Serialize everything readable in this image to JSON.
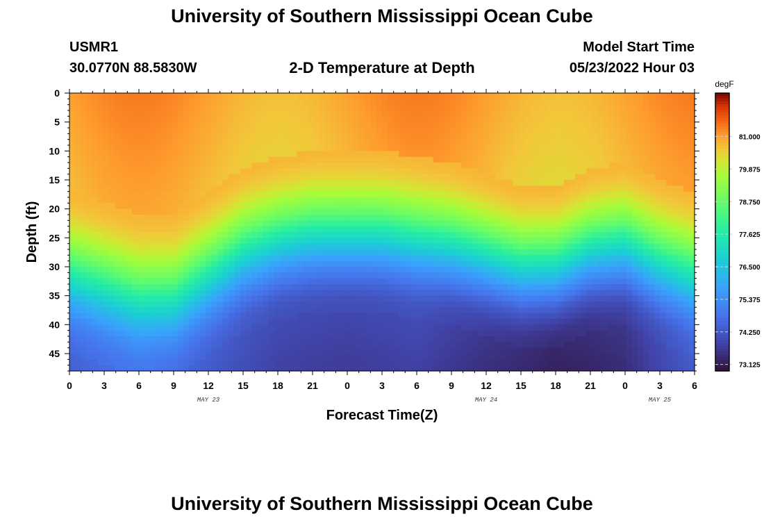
{
  "page": {
    "title": "University of Southern Mississippi Ocean Cube",
    "station_id": "USMR1",
    "coordinates": "30.0770N  88.5830W",
    "chart_title": "2-D Temperature at Depth",
    "model_label": "Model Start Time",
    "model_time": "05/23/2022 Hour 03",
    "footer_title": "University of Southern Mississippi Ocean Cube"
  },
  "chart_data": {
    "type": "heatmap",
    "title": "2-D Temperature at Depth",
    "xlabel": "Forecast Time(Z)",
    "ylabel": "Depth (ft)",
    "x_range_hours": [
      0,
      54
    ],
    "x_ticks": [
      {
        "hour": 0,
        "label": "0"
      },
      {
        "hour": 3,
        "label": "3"
      },
      {
        "hour": 6,
        "label": "6"
      },
      {
        "hour": 9,
        "label": "9"
      },
      {
        "hour": 12,
        "label": "12"
      },
      {
        "hour": 15,
        "label": "15"
      },
      {
        "hour": 18,
        "label": "18"
      },
      {
        "hour": 21,
        "label": "21"
      },
      {
        "hour": 24,
        "label": "0"
      },
      {
        "hour": 27,
        "label": "3"
      },
      {
        "hour": 30,
        "label": "6"
      },
      {
        "hour": 33,
        "label": "9"
      },
      {
        "hour": 36,
        "label": "12"
      },
      {
        "hour": 39,
        "label": "15"
      },
      {
        "hour": 42,
        "label": "18"
      },
      {
        "hour": 45,
        "label": "21"
      },
      {
        "hour": 48,
        "label": "0"
      },
      {
        "hour": 51,
        "label": "3"
      },
      {
        "hour": 54,
        "label": "6"
      }
    ],
    "date_labels": [
      {
        "hour": 12,
        "label": "MAY 23"
      },
      {
        "hour": 36,
        "label": "MAY 24"
      },
      {
        "hour": 51,
        "label": "MAY 25"
      }
    ],
    "y_range_ft": [
      0,
      48
    ],
    "y_ticks": [
      0,
      5,
      10,
      15,
      20,
      25,
      30,
      35,
      40,
      45
    ],
    "colorbar": {
      "unit": "degF",
      "min": 72.9,
      "max": 82.5,
      "labels": [
        "81.000",
        "79.875",
        "78.750",
        "77.625",
        "76.500",
        "75.375",
        "74.250",
        "73.125"
      ],
      "label_values": [
        81.0,
        79.875,
        78.75,
        77.625,
        76.5,
        75.375,
        74.25,
        73.125
      ]
    },
    "thermocline_depth_ft": {
      "hours": [
        0,
        3,
        6,
        9,
        12,
        15,
        18,
        21,
        24,
        27,
        30,
        33,
        36,
        39,
        42,
        45,
        48,
        51,
        54
      ],
      "depth": [
        31,
        33,
        35,
        35,
        31,
        27,
        25,
        24,
        24,
        24,
        25,
        26,
        28,
        30,
        30,
        27,
        26,
        29,
        31
      ]
    },
    "surface_temp_degF": 81.0,
    "bottom_temp_degF": {
      "hours": [
        0,
        6,
        12,
        18,
        24,
        30,
        36,
        42,
        48,
        54
      ],
      "temp": [
        74.3,
        74.6,
        74.2,
        73.8,
        73.7,
        73.8,
        73.4,
        73.1,
        73.4,
        74.2
      ]
    }
  }
}
